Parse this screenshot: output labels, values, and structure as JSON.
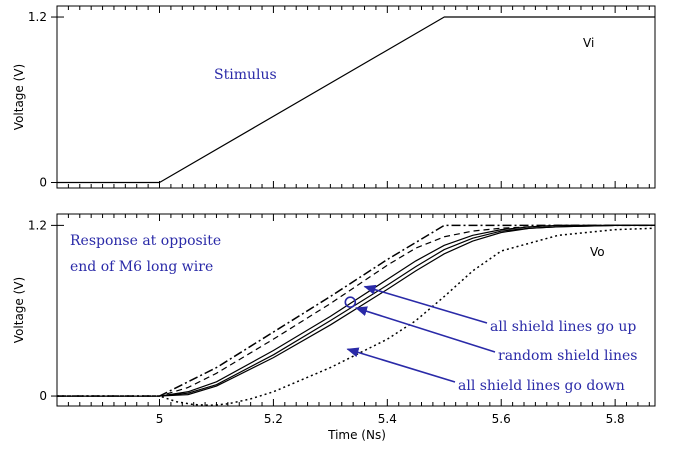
{
  "colors": {
    "annotation": "#2a2aa8",
    "trace": "#000000",
    "frame": "#000000"
  },
  "chart_data": [
    {
      "type": "line",
      "panel": "top",
      "title": "",
      "ylabel": "Voltage (V)",
      "xlabel": "",
      "xlim": [
        4.82,
        5.87
      ],
      "ylim": [
        -0.04,
        1.28
      ],
      "yticks": [
        0,
        1.2
      ],
      "ytick_labels": [
        "0",
        "1.2"
      ],
      "signal_label": "Vi",
      "annotations": [
        {
          "text": "Stimulus"
        }
      ],
      "series": [
        {
          "style": "solid",
          "x": [
            4.82,
            5.0,
            5.5,
            5.87
          ],
          "y": [
            0,
            0,
            1.2,
            1.2
          ]
        }
      ]
    },
    {
      "type": "line",
      "panel": "bottom",
      "title": "",
      "ylabel": "Voltage (V)",
      "xlabel": "Time (Ns)",
      "xlim": [
        4.82,
        5.87
      ],
      "ylim": [
        -0.07,
        1.28
      ],
      "xticks": [
        5.0,
        5.2,
        5.4,
        5.6,
        5.8
      ],
      "xtick_labels": [
        "5",
        "5.2",
        "5.4",
        "5.6",
        "5.8"
      ],
      "yticks": [
        0,
        1.2
      ],
      "ytick_labels": [
        "0",
        "1.2"
      ],
      "signal_label": "Vo",
      "annotations": [
        {
          "text": "Response at opposite"
        },
        {
          "text": "end of M6 long wire"
        },
        {
          "text": "all shield lines go up",
          "target": [
            5.36,
            0.77
          ]
        },
        {
          "text": "random shield lines",
          "target": [
            5.345,
            0.62
          ]
        },
        {
          "text": "all shield lines go down",
          "target": [
            5.33,
            0.33
          ]
        }
      ],
      "marker": {
        "x": 5.335,
        "y": 0.66
      },
      "series": [
        {
          "style": "dashdot",
          "x": [
            4.82,
            5.0,
            5.1,
            5.2,
            5.3,
            5.4,
            5.5,
            5.6,
            5.7,
            5.8,
            5.87
          ],
          "y": [
            0,
            0,
            0.2,
            0.45,
            0.7,
            0.96,
            1.2,
            1.2,
            1.2,
            1.2,
            1.2
          ]
        },
        {
          "style": "dashed",
          "x": [
            4.82,
            5.0,
            5.05,
            5.1,
            5.2,
            5.3,
            5.4,
            5.45,
            5.5,
            5.55,
            5.6,
            5.7,
            5.87
          ],
          "y": [
            0,
            0,
            0.06,
            0.16,
            0.4,
            0.65,
            0.92,
            1.04,
            1.12,
            1.16,
            1.18,
            1.2,
            1.2
          ]
        },
        {
          "style": "solid",
          "x": [
            4.82,
            5.0,
            5.05,
            5.1,
            5.2,
            5.3,
            5.4,
            5.45,
            5.5,
            5.55,
            5.6,
            5.65,
            5.7,
            5.8,
            5.87
          ],
          "y": [
            0,
            0,
            0.03,
            0.1,
            0.32,
            0.56,
            0.82,
            0.95,
            1.06,
            1.13,
            1.17,
            1.19,
            1.2,
            1.2,
            1.2
          ]
        },
        {
          "style": "solid",
          "x": [
            4.82,
            5.0,
            5.05,
            5.1,
            5.2,
            5.3,
            5.4,
            5.45,
            5.5,
            5.55,
            5.6,
            5.65,
            5.7,
            5.8,
            5.87
          ],
          "y": [
            0,
            0,
            0.02,
            0.08,
            0.29,
            0.53,
            0.78,
            0.91,
            1.03,
            1.11,
            1.16,
            1.18,
            1.19,
            1.2,
            1.2
          ]
        },
        {
          "style": "solid",
          "x": [
            4.82,
            5.0,
            5.05,
            5.1,
            5.2,
            5.3,
            5.4,
            5.45,
            5.5,
            5.55,
            5.6,
            5.65,
            5.7,
            5.8,
            5.87
          ],
          "y": [
            0,
            0,
            0.01,
            0.07,
            0.27,
            0.5,
            0.75,
            0.88,
            1.0,
            1.09,
            1.15,
            1.18,
            1.19,
            1.2,
            1.2
          ]
        },
        {
          "style": "dotted",
          "x": [
            4.82,
            5.0,
            5.03,
            5.06,
            5.09,
            5.12,
            5.16,
            5.2,
            5.3,
            5.4,
            5.45,
            5.5,
            5.55,
            5.6,
            5.7,
            5.8,
            5.87
          ],
          "y": [
            0,
            0,
            -0.04,
            -0.06,
            -0.065,
            -0.055,
            -0.02,
            0.03,
            0.2,
            0.4,
            0.53,
            0.7,
            0.88,
            1.02,
            1.13,
            1.17,
            1.18
          ]
        }
      ]
    }
  ]
}
